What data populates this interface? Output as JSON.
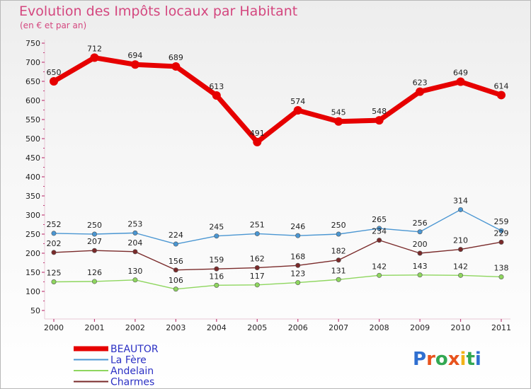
{
  "header": {
    "title": "Evolution des Impôts locaux par Habitant",
    "subtitle": "(en € et par an)"
  },
  "brand": {
    "letters": [
      "P",
      "r",
      "o",
      "x",
      "i",
      "t",
      "i"
    ]
  },
  "colors": {
    "BEAUTOR": "#e60000",
    "La Fère": "#4a96d2",
    "Andelain": "#8ed65e",
    "Charmes": "#7a2a2a",
    "legend_text": "#2b30c4",
    "title": "#d4477f",
    "logo": [
      "#2f6fd0",
      "#e8531d",
      "#32a852",
      "#e8531d",
      "#f2b318",
      "#32a852",
      "#2f6fd0"
    ]
  },
  "chart_data": {
    "type": "line",
    "title": "Evolution des Impôts locaux par Habitant",
    "subtitle": "(en € et par an)",
    "xlabel": "",
    "ylabel": "",
    "categories": [
      "2000",
      "2001",
      "2002",
      "2003",
      "2004",
      "2005",
      "2006",
      "2007",
      "2008",
      "2009",
      "2010",
      "2011"
    ],
    "ylim": [
      50,
      750
    ],
    "yticks": [
      50,
      100,
      150,
      200,
      250,
      300,
      350,
      400,
      450,
      500,
      550,
      600,
      650,
      700,
      750
    ],
    "grid": false,
    "legend_position": "bottom-left",
    "series": [
      {
        "name": "BEAUTOR",
        "values": [
          650,
          712,
          694,
          689,
          613,
          491,
          574,
          545,
          548,
          623,
          649,
          614
        ]
      },
      {
        "name": "La Fère",
        "values": [
          252,
          250,
          253,
          224,
          245,
          251,
          246,
          250,
          265,
          256,
          314,
          259
        ]
      },
      {
        "name": "Andelain",
        "values": [
          125,
          126,
          130,
          106,
          116,
          117,
          123,
          131,
          142,
          143,
          142,
          138
        ]
      },
      {
        "name": "Charmes",
        "values": [
          202,
          207,
          204,
          156,
          159,
          162,
          168,
          182,
          234,
          200,
          210,
          229
        ]
      }
    ]
  }
}
